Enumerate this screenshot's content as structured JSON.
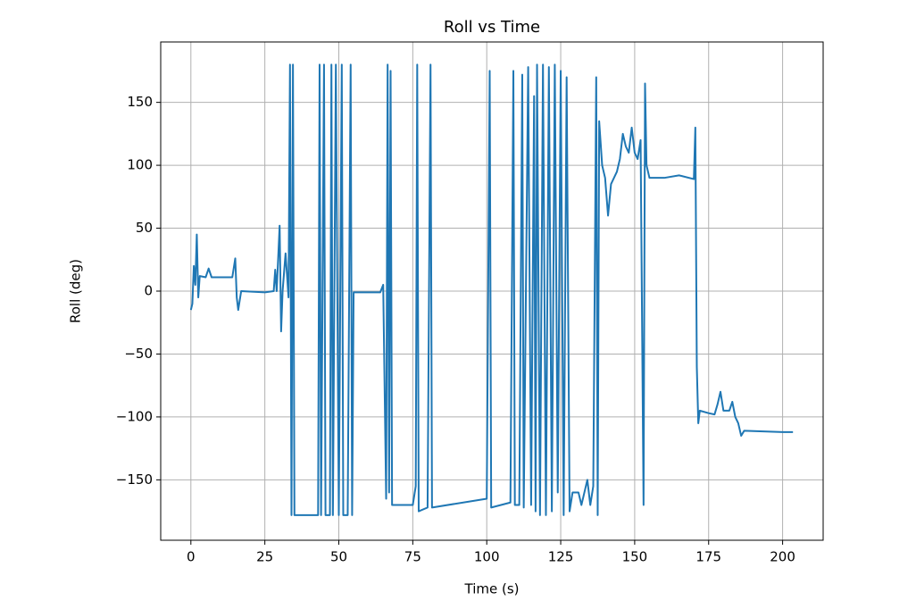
{
  "chart_data": {
    "type": "line",
    "title": "Roll vs Time",
    "x_label": "Time (s)",
    "y_label": "Roll (deg)",
    "x": [
      0,
      0.5,
      1,
      1.5,
      2,
      2.5,
      3,
      5,
      6,
      7,
      14,
      15,
      15.5,
      16,
      17,
      25,
      28,
      28.5,
      29,
      30,
      30.5,
      31,
      32,
      33,
      33.5,
      34,
      34.5,
      35,
      43,
      43.5,
      44,
      45,
      45.5,
      47,
      47.5,
      48,
      49,
      50,
      51,
      51.5,
      53,
      54,
      54.5,
      55,
      64,
      65,
      66,
      66.5,
      67,
      67.5,
      68,
      75,
      76,
      76.5,
      77,
      80,
      81,
      81.5,
      100,
      101,
      101.5,
      108,
      109,
      109.5,
      111,
      112,
      112.5,
      114,
      115,
      116,
      116.5,
      117,
      118,
      119,
      120,
      121,
      122,
      123,
      124,
      125,
      126,
      127,
      128,
      129,
      131,
      132,
      134,
      135,
      136,
      137,
      137.5,
      138,
      139,
      140,
      141,
      142,
      144,
      145,
      146,
      147,
      148,
      149,
      150,
      151,
      152,
      153,
      153.5,
      154,
      155,
      160,
      165,
      170,
      170.5,
      171,
      171.5,
      172,
      175,
      177,
      178,
      179,
      180,
      182,
      183,
      184,
      185,
      186,
      187,
      200,
      203.5
    ],
    "series": [
      {
        "name": "Roll",
        "color": "#1f77b4",
        "values": [
          -15,
          -10,
          20,
          5,
          45,
          -5,
          12,
          11,
          18,
          11,
          11,
          26,
          -5,
          -15,
          0,
          -1,
          0,
          17,
          0,
          52,
          -32,
          0,
          30,
          -5,
          180,
          -178,
          180,
          -178,
          -178,
          180,
          -178,
          180,
          -178,
          -178,
          180,
          -178,
          180,
          -178,
          180,
          -178,
          -178,
          180,
          -178,
          -1,
          -1,
          5,
          -165,
          180,
          -160,
          175,
          -170,
          -170,
          -155,
          180,
          -175,
          -172,
          180,
          -172,
          -165,
          175,
          -172,
          -168,
          175,
          -170,
          -170,
          172,
          -172,
          178,
          -170,
          155,
          -175,
          180,
          -178,
          180,
          -178,
          178,
          -175,
          180,
          -160,
          175,
          -178,
          170,
          -175,
          -160,
          -160,
          -170,
          -150,
          -170,
          -155,
          170,
          -178,
          135,
          100,
          90,
          60,
          85,
          95,
          105,
          125,
          115,
          110,
          130,
          110,
          105,
          120,
          -170,
          165,
          100,
          90,
          90,
          92,
          89,
          130,
          -60,
          -105,
          -95,
          -97,
          -98,
          -90,
          -80,
          -95,
          -95,
          -88,
          -100,
          -105,
          -115,
          -111,
          -112,
          -112
        ]
      }
    ],
    "xlim": [
      -10.2,
      213.7
    ],
    "ylim": [
      -198,
      198
    ],
    "xticks": [
      0,
      25,
      50,
      75,
      100,
      125,
      150,
      175,
      200
    ],
    "yticks": [
      {
        "value": -150,
        "label": "−150"
      },
      {
        "value": -100,
        "label": "−100"
      },
      {
        "value": -50,
        "label": "−50"
      },
      0,
      50,
      100,
      150
    ],
    "grid": true
  }
}
